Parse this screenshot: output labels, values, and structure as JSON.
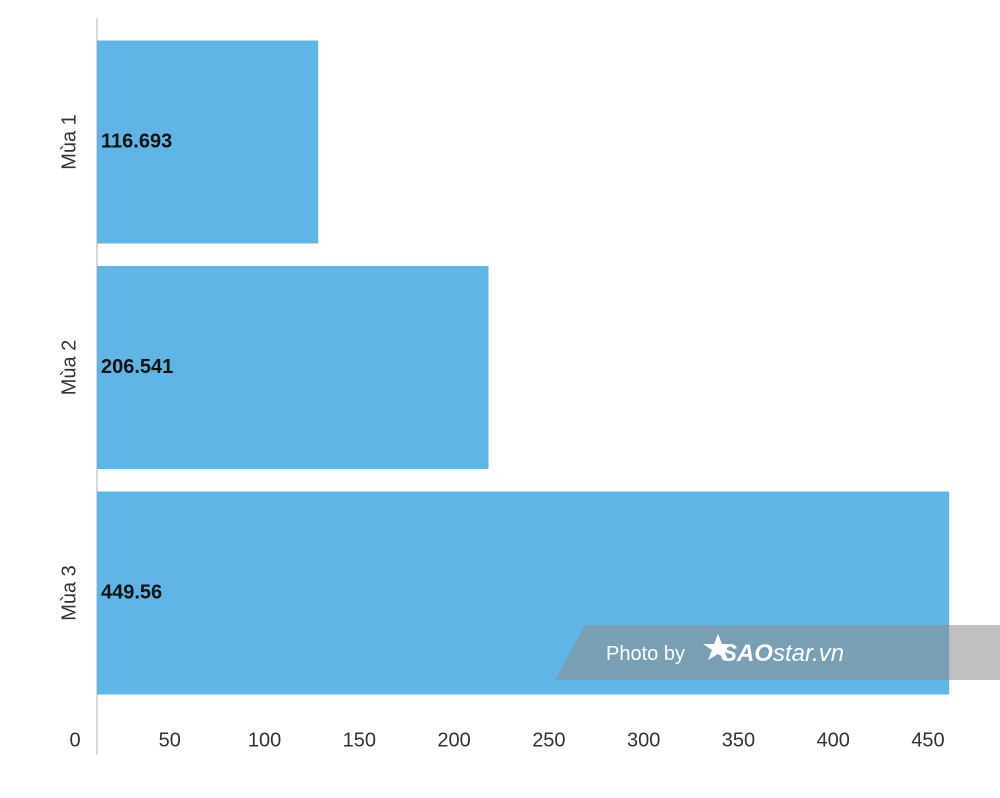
{
  "chart_data": {
    "type": "bar",
    "orientation": "horizontal",
    "categories": [
      "Mùa 1",
      "Mùa 2",
      "Mùa 3"
    ],
    "values": [
      116.693,
      206.541,
      449.56
    ],
    "color": "#5fb5e5",
    "xlim": [
      0,
      450
    ],
    "xticks": [
      0,
      50,
      100,
      150,
      200,
      250,
      300,
      350,
      400,
      450
    ],
    "grid": false,
    "watermark": [
      "Photo by",
      "SAO",
      "star.vn"
    ]
  }
}
